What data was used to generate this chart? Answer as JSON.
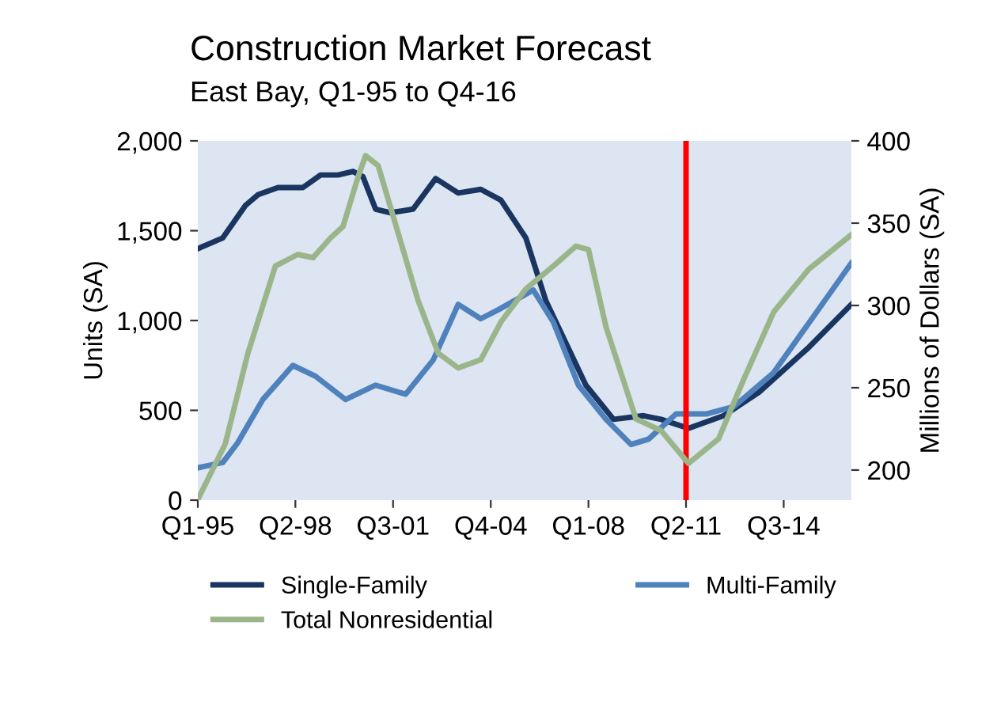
{
  "chart_data": {
    "type": "line",
    "title": "Construction Market Forecast",
    "subtitle": "East Bay, Q1-95 to Q4-16",
    "ylabel": "Units (SA)",
    "y2label": "Millions of Dollars (SA)",
    "xlim": [
      "1995-01",
      "2016-10"
    ],
    "xticks": [
      {
        "value": "1995-01",
        "label": "Q1-95"
      },
      {
        "value": "1998-04",
        "label": "Q2-98"
      },
      {
        "value": "2001-07",
        "label": "Q3-01"
      },
      {
        "value": "2004-10",
        "label": "Q4-04"
      },
      {
        "value": "2008-01",
        "label": "Q1-08"
      },
      {
        "value": "2011-04",
        "label": "Q2-11"
      },
      {
        "value": "2014-07",
        "label": "Q3-14"
      }
    ],
    "ylim": [
      0,
      2000
    ],
    "yticks": [
      {
        "value": 0,
        "label": "0"
      },
      {
        "value": 500,
        "label": "500"
      },
      {
        "value": 1000,
        "label": "1,000"
      },
      {
        "value": 1500,
        "label": "1,500"
      },
      {
        "value": 2000,
        "label": "2,000"
      }
    ],
    "y2lim": [
      181.7,
      400
    ],
    "y2ticks": [
      200,
      250,
      300,
      350,
      400
    ],
    "series": [
      {
        "name": "Single-Family",
        "color": "#1a3560",
        "x": [
          "1995-01",
          "1995-11",
          "1996-08",
          "1997-01",
          "1997-09",
          "1998-07",
          "1999-02",
          "1999-09",
          "2000-03",
          "2000-07",
          "2000-12",
          "2001-06",
          "2002-03",
          "2002-12",
          "2003-09",
          "2004-06",
          "2005-02",
          "2005-12",
          "2006-08",
          "2007-12",
          "2008-11",
          "2009-11",
          "2010-06",
          "2011-05",
          "2012-07",
          "2013-09",
          "2015-05",
          "2016-10"
        ],
        "values": [
          1400,
          1460,
          1640,
          1700,
          1740,
          1740,
          1810,
          1810,
          1830,
          1800,
          1620,
          1600,
          1620,
          1790,
          1710,
          1730,
          1670,
          1460,
          1110,
          640,
          450,
          470,
          450,
          400,
          470,
          600,
          850,
          1090
        ]
      },
      {
        "name": "Multi-Family",
        "color": "#4f81bd",
        "x": [
          "1995-01",
          "1995-11",
          "1996-05",
          "1997-03",
          "1998-03",
          "1998-12",
          "1999-12",
          "2000-12",
          "2001-12",
          "2002-11",
          "2003-09",
          "2004-06",
          "2005-01",
          "2006-03",
          "2006-11",
          "2007-09",
          "2008-08",
          "2009-06",
          "2010-01",
          "2010-12",
          "2011-12",
          "2012-11",
          "2014-03",
          "2016-10"
        ],
        "values": [
          180,
          210,
          320,
          560,
          750,
          690,
          560,
          640,
          590,
          780,
          1090,
          1010,
          1060,
          1170,
          990,
          640,
          450,
          310,
          340,
          480,
          480,
          520,
          710,
          1320
        ]
      },
      {
        "name": "Total Nonresidential",
        "color": "#9bb58a",
        "axis": "y2",
        "x": [
          "1995-01",
          "1995-12",
          "1996-09",
          "1997-08",
          "1998-05",
          "1998-11",
          "1999-06",
          "1999-11",
          "2000-05",
          "2000-08",
          "2001-01",
          "2001-09",
          "2002-05",
          "2003-01",
          "2003-09",
          "2004-06",
          "2005-02",
          "2005-12",
          "2006-11",
          "2007-08",
          "2008-01",
          "2008-08",
          "2009-08",
          "2010-06",
          "2011-05",
          "2012-05",
          "2013-03",
          "2014-03",
          "2015-05",
          "2016-10"
        ],
        "values": [
          182,
          216,
          271,
          324,
          331,
          329,
          341,
          348,
          378,
          391,
          385,
          344,
          303,
          271,
          262,
          267,
          290,
          310,
          324,
          336,
          334,
          287,
          231,
          224,
          204,
          219,
          255,
          296,
          322,
          343
        ]
      }
    ],
    "ref_lines": [
      {
        "axis": "x",
        "value": "2011-04",
        "color": "#ff0000",
        "line_style": "solid"
      }
    ],
    "legend": "bottom",
    "grid": false
  }
}
